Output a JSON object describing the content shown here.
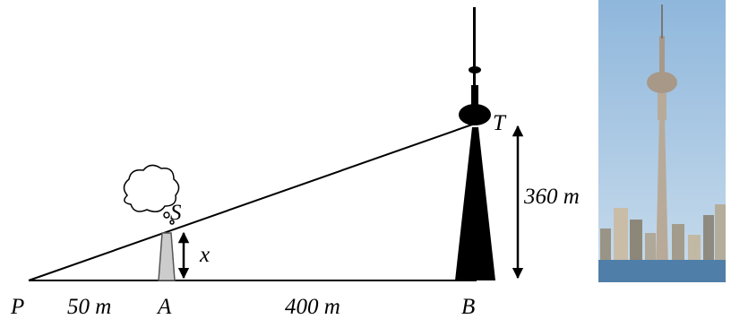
{
  "points": {
    "P": "P",
    "A": "A",
    "B": "B",
    "S": "S",
    "T": "T"
  },
  "dimensions": {
    "PA": "50 m",
    "AB": "400 m",
    "BT": "360 m",
    "AS": "x"
  }
}
